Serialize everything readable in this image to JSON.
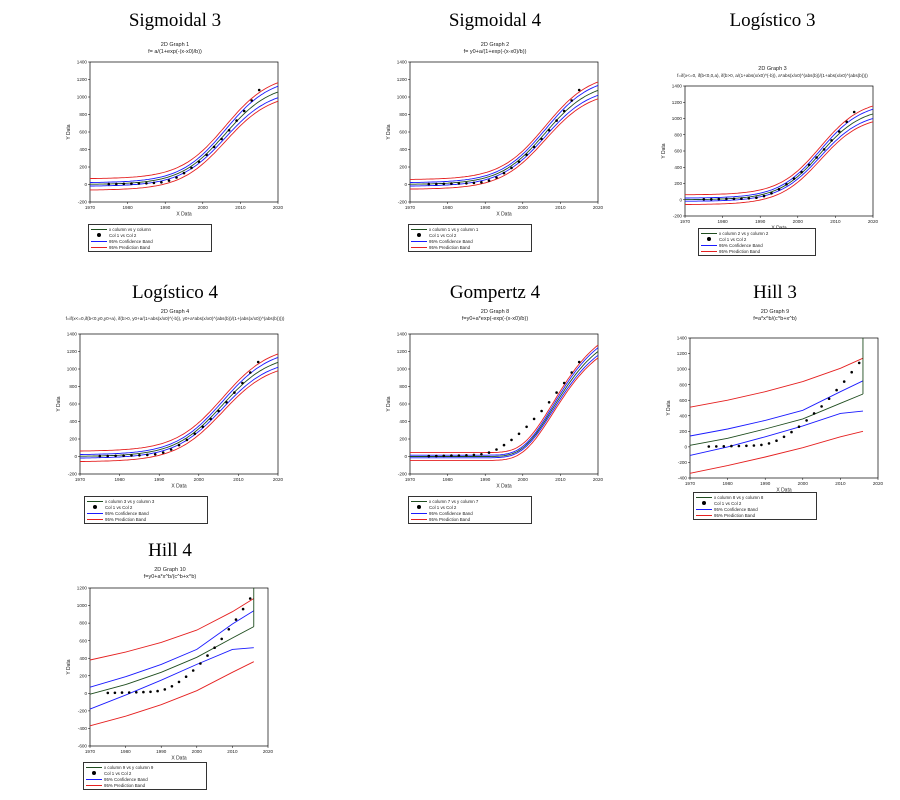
{
  "colors": {
    "fit": "#1f4d1f",
    "confidence": "#1a1aff",
    "prediction": "#e52020",
    "points": "#000000"
  },
  "chart_data": [
    {
      "type": "line",
      "model": "sigmoid",
      "title": "Sigmoidal 3",
      "graph_name": "2D Graph 1",
      "formula": "f= a/(1+exp(-(x-x0)/b))",
      "xlabel": "X Data",
      "ylabel": "Y Data",
      "xlim": [
        1970,
        2020
      ],
      "ylim": [
        -200,
        1400
      ],
      "xticks": [
        1970,
        1980,
        1990,
        2000,
        2010,
        2020
      ],
      "yticks": [
        -200,
        0,
        200,
        400,
        600,
        800,
        1000,
        1200,
        1400
      ],
      "params": {
        "a": 1160,
        "x0": 2006,
        "b": 6
      },
      "confidence_band": [
        20,
        70
      ],
      "prediction_band": [
        65,
        110
      ],
      "legend": [
        "x column vs y column",
        "Col 1 vs Col 2",
        "95% Confidence Band",
        "95% Prediction Band"
      ]
    },
    {
      "type": "line",
      "model": "sigmoid",
      "title": "Sigmoidal 4",
      "graph_name": "2D Graph 2",
      "formula": "f= y0+a/(1+exp(-(x-x0)/b))",
      "xlabel": "X Data",
      "ylabel": "Y Data",
      "xlim": [
        1970,
        2020
      ],
      "ylim": [
        -200,
        1400
      ],
      "xticks": [
        1970,
        1980,
        1990,
        2000,
        2010,
        2020
      ],
      "yticks": [
        -200,
        0,
        200,
        400,
        600,
        800,
        1000,
        1200,
        1400
      ],
      "params": {
        "a": 1180,
        "x0": 2006,
        "b": 6
      },
      "confidence_band": [
        20,
        60
      ],
      "prediction_band": [
        55,
        100
      ],
      "legend": [
        "x column 1 vs y column 1",
        "Col 1 vs Col 2",
        "95% Confidence Band",
        "95% Prediction Band"
      ]
    },
    {
      "type": "line",
      "model": "sigmoid",
      "title": "Logístico 3",
      "graph_name": "2D Graph 3",
      "formula": "f=if(x<=0, if(b<0,0,a), if(b>0, a/(1+abs(x/x0)^(-b)), a*abs(x/x0)^(abs(b))/(1+abs(x/x0)^(abs(b))))",
      "xlabel": "X Data",
      "ylabel": "Y Data",
      "xlim": [
        1970,
        2020
      ],
      "ylim": [
        -200,
        1400
      ],
      "xticks": [
        1970,
        1980,
        1990,
        2000,
        2010,
        2020
      ],
      "yticks": [
        -200,
        0,
        200,
        400,
        600,
        800,
        1000,
        1200,
        1400
      ],
      "params": {
        "a": 1140,
        "x0": 2006,
        "b": 5.5
      },
      "confidence_band": [
        20,
        60
      ],
      "prediction_band": [
        60,
        100
      ],
      "legend": [
        "x column 2 vs y column 2",
        "Col 1 vs Col 2",
        "95% Confidence Band",
        "95% Prediction Band"
      ]
    },
    {
      "type": "line",
      "model": "sigmoid",
      "title": "Logístico 4",
      "graph_name": "2D Graph 4",
      "formula": "f=if(x<=0,if(b<0,y0,y0+a), if(b>0, y0+a/(1+abs(x/x0)^(-b)), y0+a*abs(x/x0)^(abs(b))/(1+(abs(x/x0))^(abs(b)))))",
      "xlabel": "X Data",
      "ylabel": "Y Data",
      "xlim": [
        1970,
        2020
      ],
      "ylim": [
        -200,
        1400
      ],
      "xticks": [
        1970,
        1980,
        1990,
        2000,
        2010,
        2020
      ],
      "yticks": [
        -200,
        0,
        200,
        400,
        600,
        800,
        1000,
        1200,
        1400
      ],
      "params": {
        "a": 1180,
        "x0": 2006,
        "b": 6
      },
      "confidence_band": [
        20,
        60
      ],
      "prediction_band": [
        60,
        100
      ],
      "legend": [
        "x column 3 vs y column 3",
        "Col 1 vs Col 2",
        "95% Confidence Band",
        "95% Prediction Band"
      ]
    },
    {
      "type": "line",
      "model": "gompertz",
      "title": "Gompertz 4",
      "graph_name": "2D Graph 8",
      "formula": "f=y0+a*exp(-exp(-(x-x0)/b))",
      "xlabel": "X Data",
      "ylabel": "Y Data",
      "xlim": [
        1970,
        2020
      ],
      "ylim": [
        -200,
        1400
      ],
      "xticks": [
        1970,
        1980,
        1990,
        2000,
        2010,
        2020
      ],
      "yticks": [
        -200,
        0,
        200,
        400,
        600,
        800,
        1000,
        1200,
        1400
      ],
      "params": {
        "a": 1500,
        "x0": 2008,
        "b": 8
      },
      "confidence_band": [
        15,
        50
      ],
      "prediction_band": [
        45,
        80
      ],
      "legend": [
        "x column 7 vs y column 7",
        "Col 1 vs Col 2",
        "95% Confidence Band",
        "95% Prediction Band"
      ]
    },
    {
      "type": "line",
      "model": "hill",
      "title": "Hill 3",
      "graph_name": "2D Graph 9",
      "formula": "f=a*x^b/(c^b+x^b)",
      "xlabel": "X Data",
      "ylabel": "Y Data",
      "xlim": [
        1970,
        2020
      ],
      "ylim": [
        -400,
        1400
      ],
      "xticks": [
        1970,
        1980,
        1990,
        2000,
        2010,
        2020
      ],
      "yticks": [
        -400,
        -200,
        0,
        200,
        400,
        600,
        800,
        1000,
        1200,
        1400
      ],
      "fit": {
        "x": [
          1970,
          1980,
          1990,
          2000,
          2010,
          2016
        ],
        "y": [
          20,
          110,
          230,
          360,
          560,
          680
        ]
      },
      "confidence_upper": {
        "x": [
          1970,
          1980,
          1990,
          2000,
          2010,
          2016
        ],
        "y": [
          140,
          230,
          340,
          470,
          710,
          850
        ]
      },
      "confidence_lower": {
        "x": [
          1970,
          1980,
          1990,
          2000,
          2010,
          2016
        ],
        "y": [
          -110,
          0,
          130,
          270,
          430,
          460
        ]
      },
      "prediction_upper": {
        "x": [
          1970,
          1980,
          1990,
          2000,
          2010,
          2016
        ],
        "y": [
          510,
          600,
          710,
          840,
          1010,
          1140
        ]
      },
      "prediction_lower": {
        "x": [
          1970,
          1980,
          1990,
          2000,
          2010,
          2016
        ],
        "y": [
          -340,
          -240,
          -130,
          -10,
          130,
          200
        ]
      },
      "jump": {
        "x": 2016,
        "y_from": 680,
        "y_to": 1400
      },
      "legend": [
        "x column 8 vs y column 8",
        "Col 1 vs Col 2",
        "95% Confidence Band",
        "95% Prediction Band"
      ]
    },
    {
      "type": "line",
      "model": "hill",
      "title": "Hill 4",
      "graph_name": "2D Graph 10",
      "formula": "f=y0+a*x^b/(c^b+x^b)",
      "xlabel": "X Data",
      "ylabel": "Y Data",
      "xlim": [
        1970,
        2020
      ],
      "ylim": [
        -600,
        1200
      ],
      "xticks": [
        1970,
        1980,
        1990,
        2000,
        2010,
        2020
      ],
      "yticks": [
        -600,
        -400,
        -200,
        0,
        200,
        400,
        600,
        800,
        1000,
        1200
      ],
      "fit": {
        "x": [
          1970,
          1980,
          1990,
          2000,
          2010,
          2016
        ],
        "y": [
          -10,
          100,
          240,
          410,
          630,
          760
        ]
      },
      "confidence_upper": {
        "x": [
          1970,
          1980,
          1990,
          2000,
          2010,
          2016
        ],
        "y": [
          70,
          190,
          330,
          500,
          790,
          940
        ]
      },
      "confidence_lower": {
        "x": [
          1970,
          1980,
          1990,
          2000,
          2010,
          2016
        ],
        "y": [
          -180,
          -20,
          150,
          330,
          500,
          520
        ]
      },
      "prediction_upper": {
        "x": [
          1970,
          1980,
          1990,
          2000,
          2010,
          2016
        ],
        "y": [
          380,
          470,
          580,
          720,
          930,
          1080
        ]
      },
      "prediction_lower": {
        "x": [
          1970,
          1980,
          1990,
          2000,
          2010,
          2016
        ],
        "y": [
          -370,
          -260,
          -130,
          30,
          240,
          360
        ]
      },
      "jump": {
        "x": 2016,
        "y_from": 760,
        "y_to": 1200
      },
      "legend": [
        "x column 9 vs y column 9",
        "Col 1 vs Col 2",
        "95% Confidence Band",
        "95% Prediction Band"
      ]
    }
  ],
  "observations": {
    "x": [
      1975,
      1977,
      1979,
      1981,
      1983,
      1985,
      1987,
      1989,
      1991,
      1993,
      1995,
      1997,
      1999,
      2001,
      2003,
      2005,
      2007,
      2009,
      2011,
      2013,
      2015
    ],
    "y": [
      5,
      6,
      8,
      10,
      12,
      14,
      18,
      25,
      45,
      80,
      130,
      190,
      260,
      340,
      430,
      520,
      620,
      730,
      840,
      960,
      1080
    ]
  }
}
